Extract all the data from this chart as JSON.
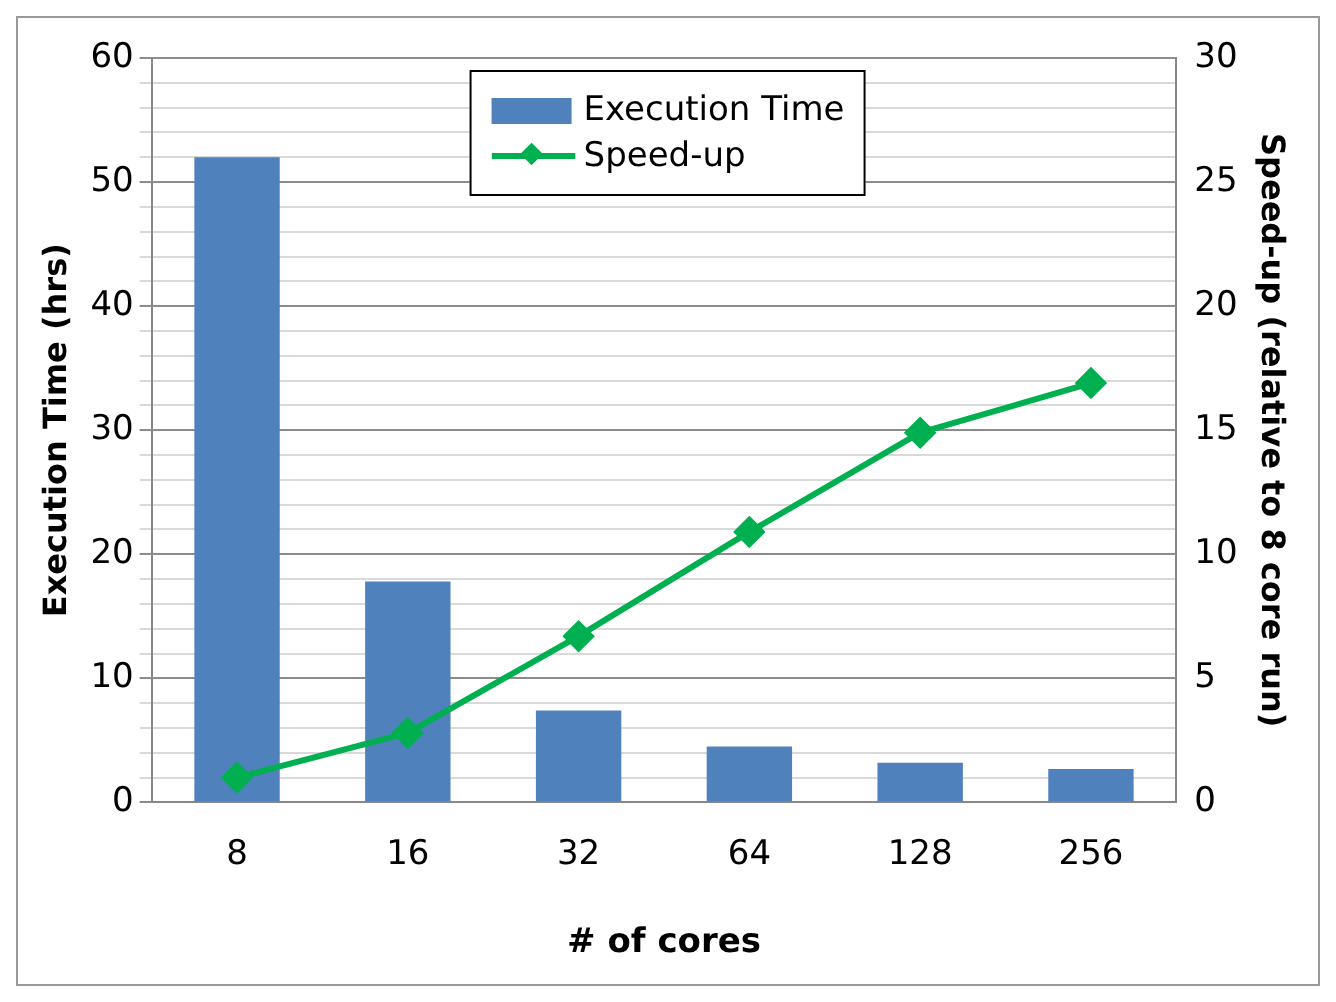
{
  "chart_data": {
    "type": "bar",
    "xlabel": "# of cores",
    "ylabel": "Execution Time (hrs)",
    "y2label": "Speed-up (relative to 8 core run)",
    "categories": [
      "8",
      "16",
      "32",
      "64",
      "128",
      "256"
    ],
    "series": [
      {
        "name": "Execution Time",
        "color": "#4f81bd",
        "values": [
          52.0,
          17.8,
          7.4,
          4.5,
          3.2,
          2.7
        ]
      },
      {
        "name": "Speed-up",
        "type": "line",
        "axis": "y2",
        "color": "#00b050",
        "marker": "diamond",
        "values": [
          1.0,
          2.8,
          6.7,
          10.9,
          14.9,
          16.9
        ]
      }
    ],
    "ylim": [
      0,
      60
    ],
    "yticks": [
      0,
      {
        "value": 2,
        "label": null
      },
      {
        "value": 4,
        "label": null
      },
      {
        "value": 6,
        "label": null
      },
      {
        "value": 8,
        "label": null
      },
      10,
      {
        "value": 12,
        "label": null
      },
      {
        "value": 14,
        "label": null
      },
      {
        "value": 16,
        "label": null
      },
      {
        "value": 18,
        "label": null
      },
      20,
      {
        "value": 22,
        "label": null
      },
      {
        "value": 24,
        "label": null
      },
      {
        "value": 26,
        "label": null
      },
      {
        "value": 28,
        "label": null
      },
      30,
      {
        "value": 32,
        "label": null
      },
      {
        "value": 34,
        "label": null
      },
      {
        "value": 36,
        "label": null
      },
      {
        "value": 38,
        "label": null
      },
      40,
      {
        "value": 42,
        "label": null
      },
      {
        "value": 44,
        "label": null
      },
      {
        "value": 46,
        "label": null
      },
      {
        "value": 48,
        "label": null
      },
      50,
      {
        "value": 52,
        "label": null
      },
      {
        "value": 54,
        "label": null
      },
      {
        "value": 56,
        "label": null
      },
      {
        "value": 58,
        "label": null
      },
      60
    ],
    "y2lim": [
      0,
      30
    ],
    "y2ticks": [
      0,
      5,
      10,
      15,
      20,
      25,
      30
    ],
    "grid": "y",
    "legend": "top"
  }
}
